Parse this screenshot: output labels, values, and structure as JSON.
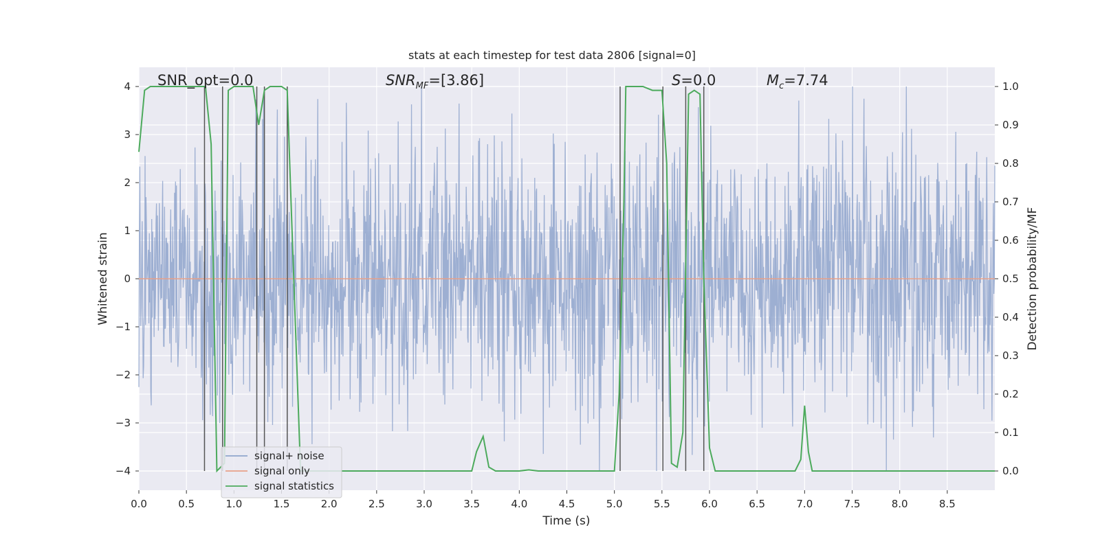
{
  "chart_data": {
    "type": "line",
    "title": "stats at each timestep for test data 2806 [signal=0]",
    "xlabel": "Time (s)",
    "ylabel": "Whitened strain",
    "ylabel_right": "Detection probability/MF",
    "xlim": [
      0,
      9
    ],
    "ylim": [
      -4.4,
      4.4
    ],
    "ylim_right": [
      -0.05,
      1.05
    ],
    "xticks": [
      "0.0",
      "0.5",
      "1.0",
      "1.5",
      "2.0",
      "2.5",
      "3.0",
      "3.5",
      "4.0",
      "4.5",
      "5.0",
      "5.5",
      "6.0",
      "6.5",
      "7.0",
      "7.5",
      "8.0",
      "8.5"
    ],
    "yticks": [
      "4",
      "3",
      "2",
      "1",
      "0",
      "−1",
      "−2",
      "−3",
      "−4"
    ],
    "yticks_right": [
      "1.0",
      "0.9",
      "0.8",
      "0.7",
      "0.6",
      "0.5",
      "0.4",
      "0.3",
      "0.2",
      "0.1",
      "0.0"
    ],
    "annotations": {
      "snr_opt": "SNR_opt=0.0",
      "snr_mf_main": "SNR",
      "snr_mf_sub": "MF",
      "snr_mf_value": "=[3.86]",
      "s_main": "S",
      "s_value": "=0.0",
      "mc_main": "M",
      "mc_sub": "c",
      "mc_value": "=7.74"
    },
    "grid": true,
    "legend": {
      "position": "lower-left",
      "entries": [
        "signal+ noise",
        "signal only",
        "signal statistics"
      ]
    },
    "colors": {
      "noise": "#8fa5cc",
      "signal": "#e8a088",
      "stats": "#4caa5c",
      "background": "#eaeaf2",
      "marker_lines": "#555555"
    },
    "series": [
      {
        "name": "signal+ noise",
        "axis": "left",
        "t_start": 0,
        "t_end": 9,
        "n_samples": 1800,
        "envelope": {
          "upper": [
            [
              0.0,
              2.1
            ],
            [
              0.5,
              2.4
            ],
            [
              1.0,
              2.5
            ],
            [
              1.5,
              2.6
            ],
            [
              2.0,
              2.3
            ],
            [
              2.5,
              2.6
            ],
            [
              3.0,
              2.5
            ],
            [
              3.5,
              2.5
            ],
            [
              4.0,
              2.6
            ],
            [
              4.5,
              2.8
            ],
            [
              5.0,
              2.6
            ],
            [
              5.5,
              2.9
            ],
            [
              6.0,
              2.7
            ],
            [
              6.5,
              2.4
            ],
            [
              7.0,
              2.6
            ],
            [
              7.5,
              2.7
            ],
            [
              8.0,
              2.6
            ],
            [
              8.5,
              2.6
            ],
            [
              9.0,
              2.5
            ]
          ],
          "lower": [
            [
              0.0,
              -2.1
            ],
            [
              0.5,
              -2.4
            ],
            [
              1.0,
              -2.6
            ],
            [
              1.5,
              -2.5
            ],
            [
              2.0,
              -2.3
            ],
            [
              2.5,
              -2.4
            ],
            [
              3.0,
              -2.4
            ],
            [
              3.5,
              -2.5
            ],
            [
              4.0,
              -2.5
            ],
            [
              4.5,
              -2.5
            ],
            [
              5.0,
              -2.7
            ],
            [
              5.5,
              -2.9
            ],
            [
              6.0,
              -2.6
            ],
            [
              6.5,
              -2.4
            ],
            [
              7.0,
              -2.6
            ],
            [
              7.5,
              -2.6
            ],
            [
              8.0,
              -2.5
            ],
            [
              8.5,
              -2.5
            ],
            [
              9.0,
              -2.5
            ]
          ]
        }
      },
      {
        "name": "signal only",
        "axis": "left",
        "x": [
          0,
          9
        ],
        "y": [
          0,
          0
        ]
      },
      {
        "name": "signal statistics",
        "axis": "right",
        "x": [
          0.0,
          0.06,
          0.12,
          0.2,
          0.3,
          0.5,
          0.6,
          0.66,
          0.7,
          0.76,
          0.82,
          0.9,
          0.94,
          1.0,
          1.2,
          1.26,
          1.32,
          1.38,
          1.44,
          1.5,
          1.56,
          1.6,
          1.7,
          1.8,
          2.0,
          2.5,
          3.0,
          3.5,
          3.55,
          3.62,
          3.68,
          3.75,
          4.0,
          4.1,
          4.2,
          4.5,
          5.0,
          5.05,
          5.1,
          5.12,
          5.2,
          5.3,
          5.4,
          5.5,
          5.55,
          5.6,
          5.66,
          5.72,
          5.78,
          5.84,
          5.9,
          5.94,
          6.0,
          6.06,
          6.12,
          6.2,
          6.5,
          6.9,
          6.96,
          7.0,
          7.04,
          7.08,
          7.3,
          8.0,
          8.5,
          9.0
        ],
        "y": [
          0.83,
          0.99,
          1.0,
          1.0,
          1.0,
          1.0,
          1.0,
          1.0,
          1.0,
          0.85,
          0.0,
          0.02,
          0.99,
          1.0,
          1.0,
          0.9,
          0.99,
          1.0,
          1.0,
          1.0,
          0.99,
          0.7,
          0.0,
          0.0,
          0.0,
          0.0,
          0.0,
          0.0,
          0.05,
          0.09,
          0.01,
          0.0,
          0.0,
          0.003,
          0.0,
          0.0,
          0.0,
          0.2,
          0.7,
          1.0,
          1.0,
          1.0,
          0.99,
          0.99,
          0.8,
          0.02,
          0.01,
          0.1,
          0.98,
          0.99,
          0.98,
          0.5,
          0.06,
          0.0,
          0.0,
          0.0,
          0.0,
          0.0,
          0.03,
          0.17,
          0.05,
          0.0,
          0.0,
          0.0,
          0.0,
          0.0
        ]
      }
    ],
    "marker_lines_x": [
      0.69,
      0.88,
      1.24,
      1.32,
      1.56,
      5.06,
      5.51,
      5.75,
      5.94
    ]
  }
}
